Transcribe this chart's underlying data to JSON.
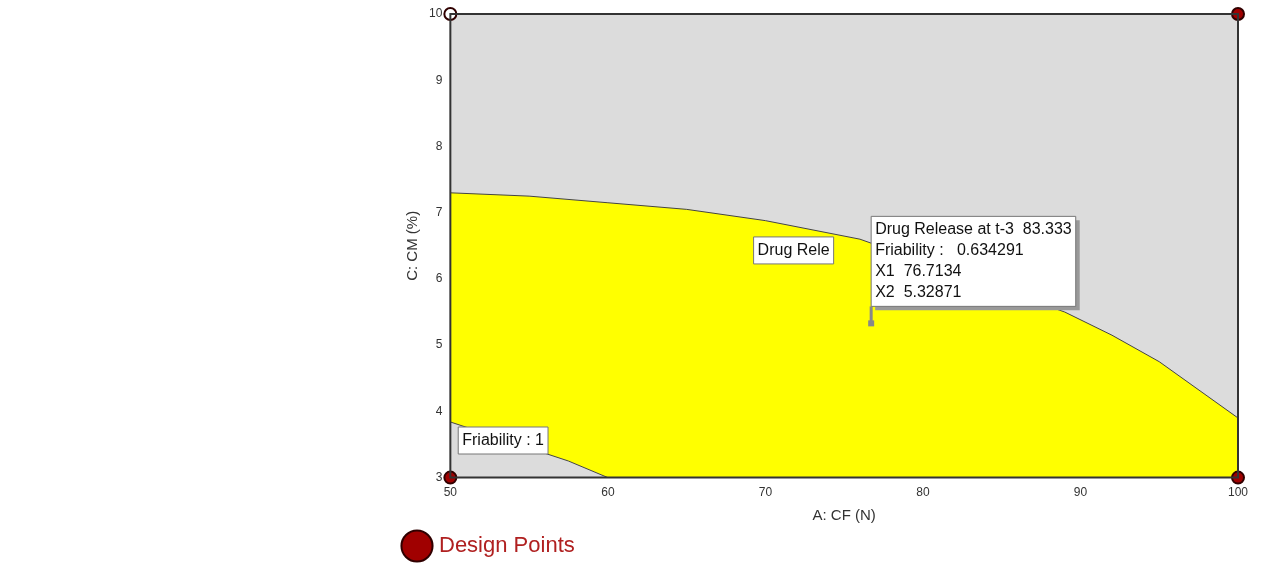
{
  "chart_data": {
    "type": "scatter",
    "xlabel": "A: CF (N)",
    "ylabel": "C: CM (%)",
    "xlim": [
      50,
      100
    ],
    "xticks": [
      50,
      60,
      70,
      80,
      90,
      100
    ],
    "ylim": [
      3,
      10
    ],
    "yticks": [
      3,
      4,
      5,
      6,
      7,
      8,
      9,
      10
    ],
    "grid": false,
    "legend": "bottom left",
    "series": [
      {
        "type": "area",
        "color": "#ffff00",
        "x": [
          50,
          55,
          60,
          65,
          70,
          76,
          89,
          92,
          95,
          100
        ],
        "values": [
          7.3,
          7.25,
          7.15,
          7.05,
          6.88,
          6.6,
          5.5,
          5.15,
          4.75,
          3.9
        ]
      },
      {
        "type": "area",
        "color": "#dcdcdc",
        "x": [
          50,
          57.5,
          60
        ],
        "values": [
          3.84,
          3.25,
          3
        ]
      },
      {
        "name": "Design Points",
        "color": "#a00000",
        "marker": "circle",
        "x": [
          50,
          100,
          50,
          100
        ],
        "values": [
          10,
          10,
          3,
          3
        ],
        "colors": [
          "#ffffff",
          "#a00000",
          "#a00000",
          "#a00000"
        ]
      }
    ],
    "annotations": [
      "Drug Rele",
      "Friability : 1",
      {
        "text": "Drug Release at t-3  83.333\nFriability :   0.634291\nX1  76.7134\nX2  5.32871",
        "x": 76.7134,
        "y": 5.32871
      }
    ]
  }
}
